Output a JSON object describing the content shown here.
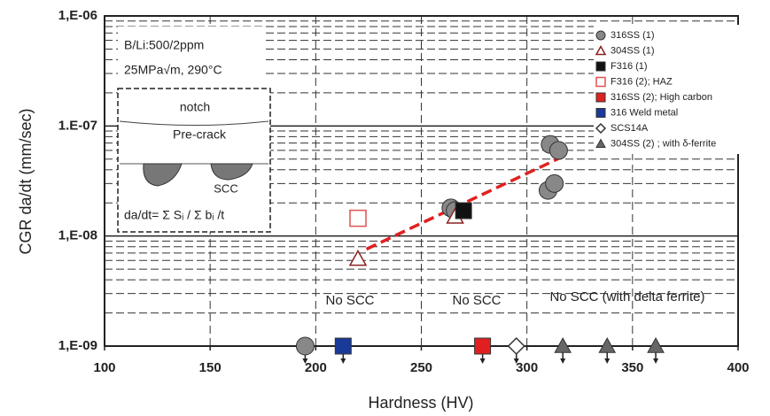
{
  "chart_data": {
    "type": "scatter",
    "x_label": "Hardness (HV)",
    "y_label": "CGR da/dt (mm/sec)",
    "xlim": [
      100,
      400
    ],
    "xticks": [
      100,
      150,
      200,
      250,
      300,
      350,
      400
    ],
    "ylim": [
      1e-09,
      1e-06
    ],
    "yticks": [
      {
        "value": 1e-09,
        "label": "1,E-09"
      },
      {
        "value": 1e-08,
        "label": "1,E-08"
      },
      {
        "value": 1e-07,
        "label": "1.E-07"
      },
      {
        "value": 1e-06,
        "label": "1,E-06"
      }
    ],
    "y_log": true,
    "grid": true,
    "minor_grid": true,
    "legend": "upper right",
    "series": [
      {
        "name": "316SS (1)",
        "color": "#888888",
        "marker": "circle",
        "x": [
          264,
          266,
          311,
          315,
          310,
          313,
          195
        ],
        "y": [
          1.8e-08,
          1.7e-08,
          6.8e-08,
          6e-08,
          2.6e-08,
          3e-08,
          1e-09
        ]
      },
      {
        "name": "304SS (1)",
        "color": "#8b2020",
        "marker": "triangle-open",
        "x": [
          220,
          266
        ],
        "y": [
          6.2e-09,
          1.5e-08
        ]
      },
      {
        "name": "F316 (1)",
        "color": "#111111",
        "marker": "square",
        "x": [
          270
        ],
        "y": [
          1.7e-08
        ]
      },
      {
        "name": "F316 (2); HAZ",
        "color": "#e05050",
        "marker": "square-open",
        "x": [
          220
        ],
        "y": [
          1.45e-08
        ]
      },
      {
        "name": "316SS (2); High carbon",
        "color": "#e02020",
        "marker": "square",
        "x": [
          279
        ],
        "y": [
          1e-09
        ]
      },
      {
        "name": "316 Weld metal",
        "color": "#1a3a9a",
        "marker": "square",
        "x": [
          213
        ],
        "y": [
          1e-09
        ]
      },
      {
        "name": "SCS14A",
        "color": "#333333",
        "marker": "diamond-open",
        "x": [
          295
        ],
        "y": [
          1e-09
        ]
      },
      {
        "name": "304SS (2) ; with δ-ferrite",
        "color": "#666666",
        "marker": "triangle",
        "x": [
          317,
          338,
          361
        ],
        "y": [
          1e-09,
          1e-09,
          1e-09
        ]
      }
    ],
    "trend_line": {
      "color": "#e02020",
      "x": [
        224,
        319
      ],
      "y": [
        7.6e-09,
        5.5e-08
      ]
    },
    "annotations": [
      "No SCC",
      "No SCC",
      "No SCC (with delta ferrite)"
    ],
    "inset": {
      "condition": "B/Li:500/2ppm",
      "stress": "25MPa√m, 290°C",
      "notch": "notch",
      "precrack": "Pre-crack",
      "scc": "SCC",
      "formula": "da/dt= Σ Sᵢ / Σ bᵢ /t"
    }
  }
}
